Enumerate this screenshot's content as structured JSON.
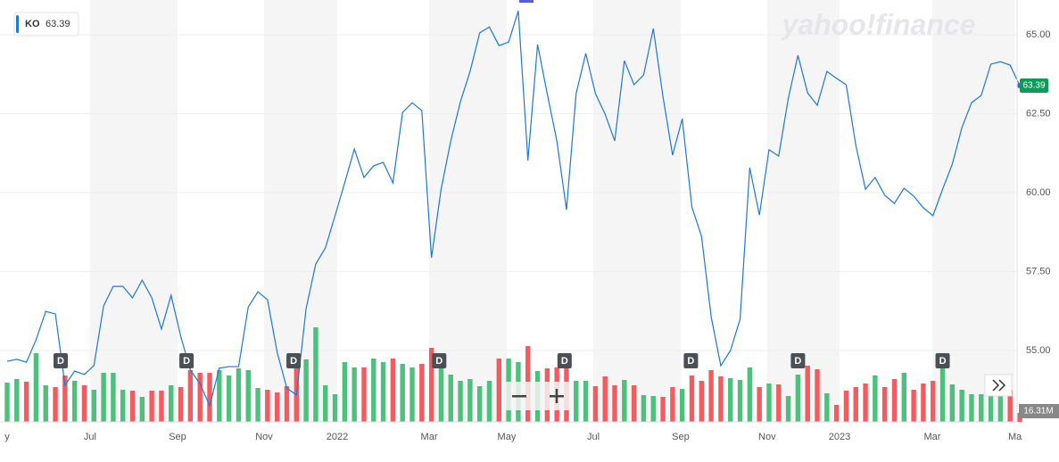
{
  "chart_data": {
    "type": "line",
    "logo": "yahoo!finance",
    "x": [
      0,
      1,
      2,
      3,
      4,
      5,
      6,
      7,
      8,
      9,
      10,
      11,
      12,
      13,
      14,
      15,
      16,
      17,
      18,
      19,
      20,
      21,
      22,
      23,
      24,
      25,
      26,
      27,
      28,
      29,
      30,
      31,
      32,
      33,
      34,
      35,
      36,
      37,
      38,
      39,
      40,
      41,
      42,
      43,
      44,
      45,
      46,
      47,
      48,
      49,
      50,
      51,
      52,
      53,
      54,
      55,
      56,
      57,
      58,
      59,
      60,
      61,
      62,
      63,
      64,
      65,
      66,
      67,
      68,
      69,
      70,
      71,
      72,
      73,
      74,
      75,
      76,
      77,
      78,
      79,
      80,
      81,
      82,
      83,
      84,
      85,
      86,
      87,
      88,
      89,
      90,
      91,
      92,
      93,
      94,
      95,
      96,
      97,
      98,
      99,
      100,
      101,
      102,
      103,
      104,
      105
    ],
    "series": [
      {
        "name": "KO",
        "color": "#1e78d6",
        "values": [
          54.66,
          54.72,
          54.63,
          55.34,
          56.24,
          56.16,
          53.9,
          54.35,
          54.24,
          54.52,
          56.41,
          57.03,
          57.03,
          56.67,
          57.23,
          56.67,
          55.68,
          56.75,
          55.45,
          54.38,
          53.95,
          53.25,
          54.44,
          54.49,
          54.49,
          56.38,
          56.86,
          56.61,
          54.94,
          53.81,
          53.59,
          56.33,
          57.74,
          58.25,
          59.27,
          60.31,
          61.38,
          60.48,
          60.85,
          60.96,
          60.31,
          62.54,
          62.85,
          62.6,
          57.94,
          60.11,
          61.64,
          62.88,
          63.84,
          65.06,
          65.25,
          64.66,
          64.77,
          65.76,
          61.02,
          64.69,
          63.14,
          61.64,
          59.46,
          63.14,
          64.41,
          63.14,
          62.49,
          61.64,
          64.18,
          63.42,
          63.73,
          65.2,
          63.05,
          61.19,
          62.34,
          59.55,
          58.62,
          56.07,
          54.52,
          55.0,
          55.99,
          60.79,
          59.29,
          61.36,
          61.16,
          62.99,
          64.35,
          63.16,
          62.77,
          63.84,
          63.62,
          63.42,
          61.5,
          60.11,
          60.48,
          59.92,
          59.66,
          60.14,
          59.89,
          59.52,
          59.27,
          60.11,
          60.9,
          62.06,
          62.85,
          63.08,
          64.07,
          64.15,
          64.04,
          63.39
        ]
      }
    ],
    "volume": {
      "up_color": "#4cc07c",
      "down_color": "#f25c61",
      "values": [
        71.8,
        78.3,
        73.4,
        125.6,
        66.9,
        63.6,
        84.8,
        75.0,
        66.9,
        58.7,
        89.7,
        89.7,
        58.7,
        57.1,
        45.7,
        57.1,
        57.1,
        66.9,
        63.6,
        94.6,
        89.7,
        89.7,
        94.6,
        84.8,
        97.9,
        94.6,
        62.0,
        58.7,
        53.8,
        65.2,
        114.2,
        114.2,
        172.9,
        66.9,
        50.6,
        109.3,
        99.5,
        99.5,
        115.8,
        109.3,
        115.8,
        106.0,
        99.5,
        106.0,
        135.4,
        99.5,
        86.4,
        75.0,
        78.3,
        65.2,
        75.0,
        115.8,
        115.8,
        109.3,
        138.6,
        93.0,
        97.9,
        99.5,
        125.6,
        75.0,
        75.0,
        65.2,
        83.2,
        66.9,
        76.7,
        66.9,
        48.9,
        47.3,
        45.7,
        63.6,
        60.3,
        84.8,
        75.0,
        94.6,
        83.2,
        79.9,
        76.7,
        99.5,
        63.6,
        70.1,
        68.5,
        47.3,
        86.4,
        102.8,
        96.2,
        52.2,
        31.0,
        57.1,
        63.6,
        70.1,
        84.8,
        63.6,
        78.3,
        89.7,
        58.7,
        70.1,
        75.0,
        122.3,
        68.5,
        58.7,
        50.6,
        50.6,
        53.8,
        57.1,
        58.7,
        16.31
      ],
      "last_label": "16.31M"
    },
    "dividends": {
      "label": "D",
      "x": [
        5.55,
        18.6,
        29.7,
        44.8,
        57.8,
        70.9,
        82.0,
        97.0
      ]
    },
    "xlim": [
      -0.74,
      104.72
    ],
    "xticks": [
      {
        "value": 0,
        "label": "y"
      },
      {
        "value": 8.6,
        "label": "Jul"
      },
      {
        "value": 17.67,
        "label": "Sep"
      },
      {
        "value": 26.64,
        "label": "Nov"
      },
      {
        "value": 34.23,
        "label": "2022"
      },
      {
        "value": 43.76,
        "label": "Mar"
      },
      {
        "value": 51.8,
        "label": "May"
      },
      {
        "value": 60.78,
        "label": "Jul"
      },
      {
        "value": 69.84,
        "label": "Sep"
      },
      {
        "value": 78.8,
        "label": "Nov"
      },
      {
        "value": 86.31,
        "label": "2023"
      },
      {
        "value": 95.93,
        "label": "Mar"
      },
      {
        "value": 104.5,
        "label": "Ma"
      }
    ],
    "ylim": [
      52.74,
      65.99
    ],
    "yticks": [
      {
        "value": 55,
        "label": "55.00"
      },
      {
        "value": 57.5,
        "label": "57.50"
      },
      {
        "value": 60,
        "label": "60.00"
      },
      {
        "value": 62.5,
        "label": "62.50"
      },
      {
        "value": 65,
        "label": "65.00"
      }
    ],
    "grid": true
  }
}
